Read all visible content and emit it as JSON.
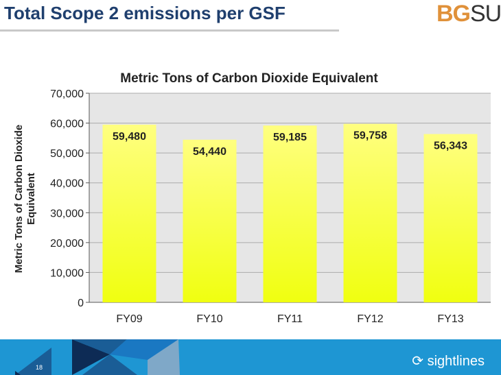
{
  "slide": {
    "title": "Total Scope 2 emissions per GSF",
    "logo_bg": "BG",
    "logo_su": "SU",
    "page_number": "18",
    "brand": "sightlines"
  },
  "colors": {
    "title": "#1f3f6e",
    "logo": "#e0913a",
    "footer": "#1e96d3",
    "bar_top": "#ffff80",
    "bar_bottom": "#f0ff10",
    "plot_bg": "#e6e6e6"
  },
  "chart_data": {
    "type": "bar",
    "title": "Metric Tons of Carbon Dioxide Equivalent",
    "ylabel": "Metric Tons of Carbon Dioxide Equivalent",
    "xlabel": "",
    "categories": [
      "FY09",
      "FY10",
      "FY11",
      "FY12",
      "FY13"
    ],
    "values": [
      59480,
      54440,
      59185,
      59758,
      56343
    ],
    "data_labels": [
      "59,480",
      "54,440",
      "59,185",
      "59,758",
      "56,343"
    ],
    "ylim": [
      0,
      70000
    ],
    "yticks": [
      "0",
      "10,000",
      "20,000",
      "30,000",
      "40,000",
      "50,000",
      "60,000",
      "70,000"
    ],
    "grid": true,
    "legend": "none"
  }
}
